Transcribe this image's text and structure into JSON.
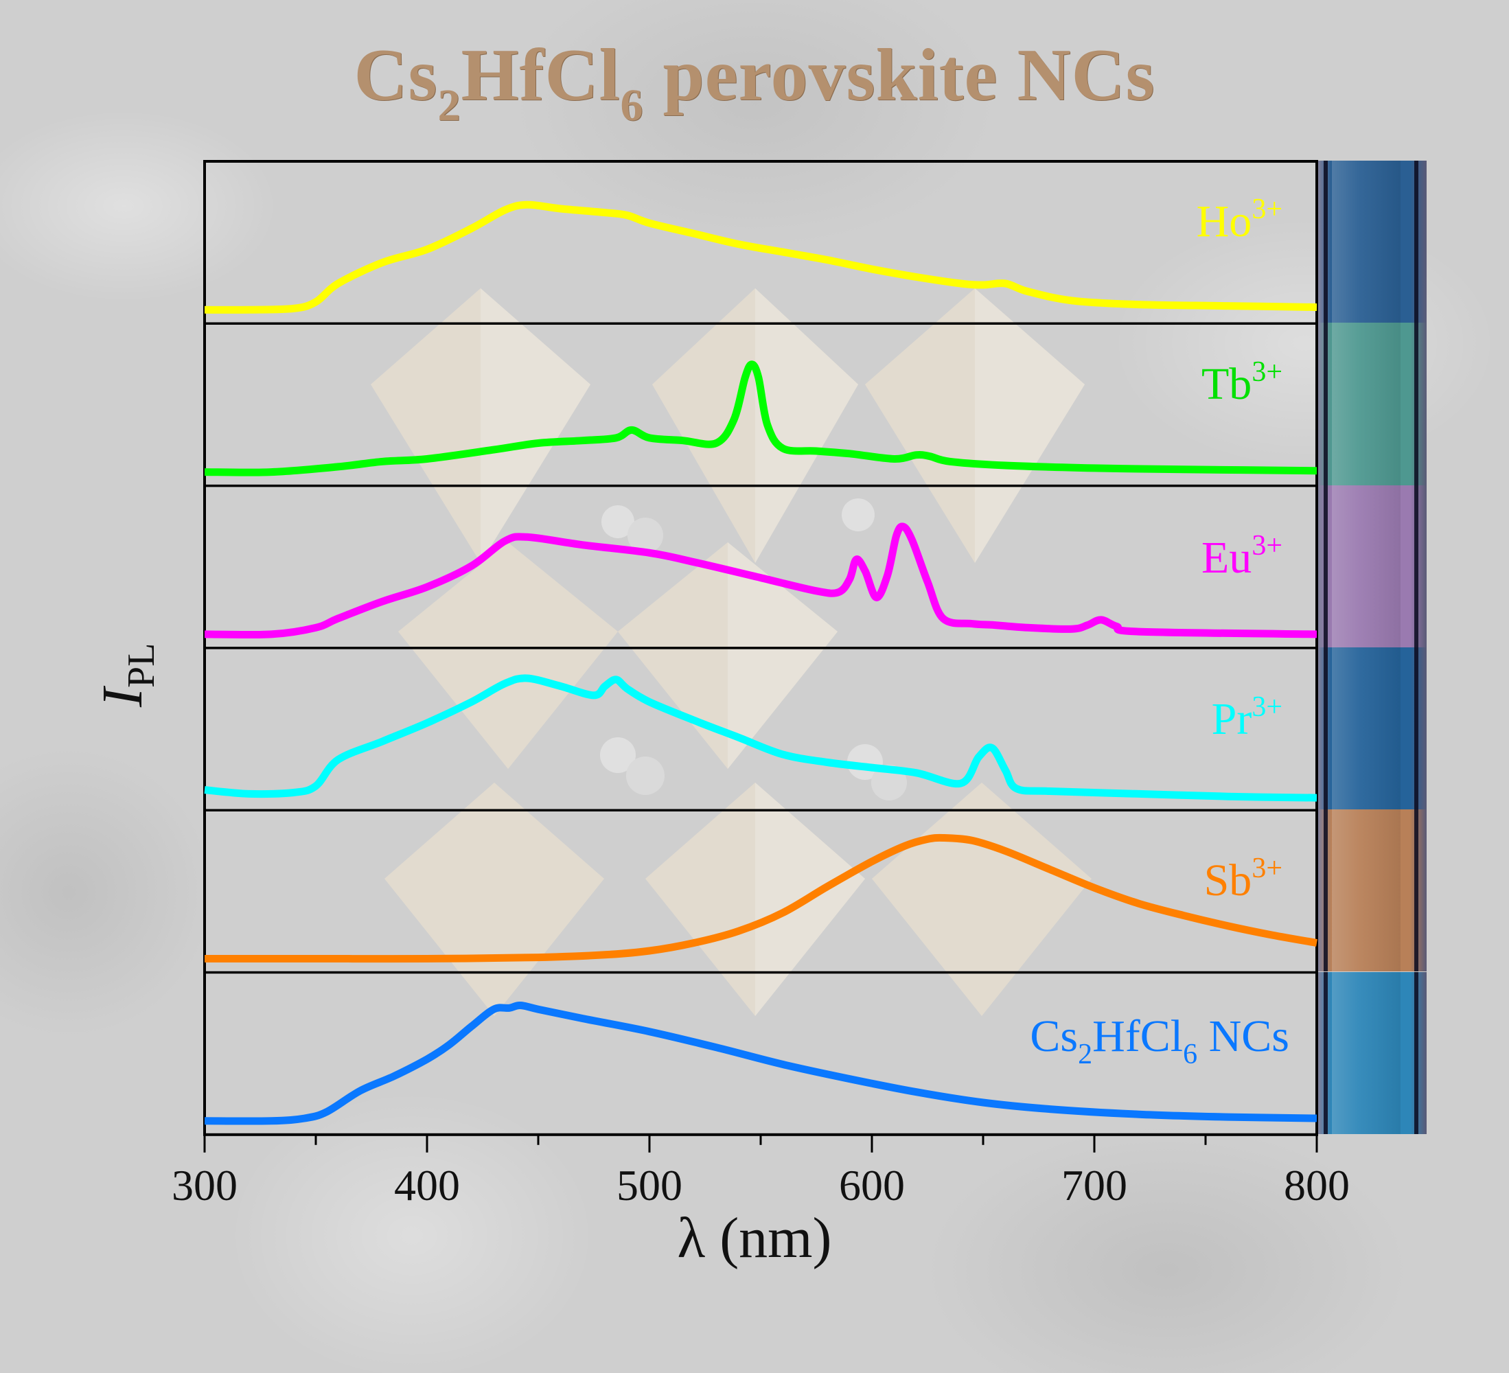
{
  "title": {
    "main_a": "Cs",
    "sub_a": "2",
    "main_b": "HfCl",
    "sub_b": "6",
    "main_c": " perovskite NCs",
    "color": "#b4906e"
  },
  "chart_data": {
    "type": "line",
    "layout": "stacked-panels",
    "title": "Cs2HfCl6 perovskite NCs",
    "xlabel": "λ (nm)",
    "ylabel_main": "I",
    "ylabel_sub": "PL",
    "xlim": [
      300,
      800
    ],
    "x_ticks": [
      300,
      400,
      500,
      600,
      700,
      800
    ],
    "x_tick_labels": [
      "300",
      "400",
      "500",
      "600",
      "700",
      "800"
    ],
    "y_units": "normalized intensity (arb.)",
    "grid": false,
    "series": [
      {
        "name": "Ho3+",
        "label_main": "Ho",
        "label_sup": "3+",
        "color": "#ffff00",
        "vial_color": "#2a5f93",
        "x": [
          300,
          320,
          340,
          350,
          360,
          380,
          400,
          420,
          435,
          445,
          460,
          480,
          490,
          500,
          520,
          540,
          560,
          580,
          600,
          620,
          640,
          650,
          660,
          670,
          690,
          720,
          760,
          800
        ],
        "y": [
          0.0,
          0.0,
          0.01,
          0.06,
          0.2,
          0.36,
          0.46,
          0.62,
          0.76,
          0.8,
          0.77,
          0.74,
          0.72,
          0.66,
          0.58,
          0.5,
          0.44,
          0.38,
          0.31,
          0.25,
          0.2,
          0.19,
          0.2,
          0.14,
          0.07,
          0.04,
          0.03,
          0.02
        ]
      },
      {
        "name": "Tb3+",
        "label_main": "Tb",
        "label_sup": "3+",
        "color": "#00ff00",
        "vial_color": "#4e9890",
        "x": [
          300,
          330,
          360,
          380,
          400,
          430,
          450,
          470,
          485,
          492,
          500,
          515,
          530,
          538,
          543,
          546,
          549,
          553,
          560,
          575,
          590,
          610,
          620,
          626,
          635,
          660,
          700,
          740,
          800
        ],
        "y": [
          0.0,
          0.0,
          0.04,
          0.08,
          0.1,
          0.17,
          0.22,
          0.24,
          0.26,
          0.32,
          0.26,
          0.24,
          0.22,
          0.4,
          0.72,
          0.82,
          0.72,
          0.36,
          0.18,
          0.16,
          0.14,
          0.1,
          0.13,
          0.12,
          0.08,
          0.05,
          0.03,
          0.02,
          0.01
        ]
      },
      {
        "name": "Eu3+",
        "label_main": "Eu",
        "label_sup": "3+",
        "color": "#ff00ff",
        "vial_color": "#9a7ab0",
        "x": [
          300,
          330,
          350,
          360,
          380,
          400,
          420,
          435,
          445,
          470,
          500,
          520,
          550,
          575,
          585,
          590,
          593,
          597,
          602,
          607,
          611,
          614,
          618,
          625,
          632,
          645,
          655,
          670,
          690,
          697,
          703,
          710,
          720,
          800
        ],
        "y": [
          0.0,
          0.0,
          0.05,
          0.12,
          0.25,
          0.36,
          0.52,
          0.71,
          0.74,
          0.68,
          0.62,
          0.55,
          0.43,
          0.33,
          0.32,
          0.42,
          0.57,
          0.48,
          0.28,
          0.45,
          0.75,
          0.82,
          0.72,
          0.4,
          0.12,
          0.08,
          0.07,
          0.05,
          0.04,
          0.07,
          0.11,
          0.06,
          0.02,
          0.0
        ]
      },
      {
        "name": "Pr3+",
        "label_main": "Pr",
        "label_sup": "3+",
        "color": "#00ffff",
        "vial_color": "#25639a",
        "x": [
          300,
          320,
          340,
          350,
          360,
          380,
          400,
          420,
          435,
          445,
          460,
          475,
          480,
          485,
          490,
          500,
          520,
          540,
          560,
          580,
          600,
          620,
          640,
          648,
          654,
          660,
          665,
          680,
          720,
          760,
          800
        ],
        "y": [
          0.05,
          0.02,
          0.03,
          0.08,
          0.28,
          0.42,
          0.56,
          0.72,
          0.86,
          0.9,
          0.84,
          0.77,
          0.84,
          0.89,
          0.82,
          0.72,
          0.58,
          0.45,
          0.32,
          0.26,
          0.22,
          0.18,
          0.1,
          0.3,
          0.37,
          0.2,
          0.06,
          0.04,
          0.02,
          0.0,
          -0.01
        ]
      },
      {
        "name": "Sb3+",
        "label_main": "Sb",
        "label_sup": "3+",
        "color": "#ff8000",
        "vial_color": "#b88058",
        "x": [
          300,
          350,
          400,
          450,
          480,
          500,
          520,
          540,
          560,
          580,
          600,
          615,
          625,
          632,
          645,
          660,
          680,
          700,
          720,
          740,
          760,
          780,
          800
        ],
        "y": [
          0.0,
          0.0,
          0.0,
          0.01,
          0.03,
          0.06,
          0.12,
          0.21,
          0.35,
          0.55,
          0.74,
          0.86,
          0.91,
          0.92,
          0.9,
          0.82,
          0.68,
          0.54,
          0.42,
          0.33,
          0.25,
          0.18,
          0.12
        ]
      },
      {
        "name": "Cs2HfCl6 NCs",
        "label_main": "Cs",
        "label_sub1": "2",
        "label_mid": "HfCl",
        "label_sub2": "6",
        "label_end": " NCs",
        "color": "#0a78ff",
        "vial_color": "#2d86b8",
        "x": [
          300,
          330,
          345,
          355,
          370,
          385,
          400,
          410,
          420,
          430,
          437,
          442,
          450,
          470,
          500,
          530,
          560,
          590,
          620,
          650,
          680,
          720,
          760,
          800
        ],
        "y": [
          0.0,
          0.0,
          0.02,
          0.07,
          0.23,
          0.34,
          0.47,
          0.58,
          0.72,
          0.85,
          0.86,
          0.88,
          0.85,
          0.78,
          0.68,
          0.56,
          0.43,
          0.32,
          0.22,
          0.14,
          0.09,
          0.05,
          0.03,
          0.02
        ]
      }
    ]
  }
}
